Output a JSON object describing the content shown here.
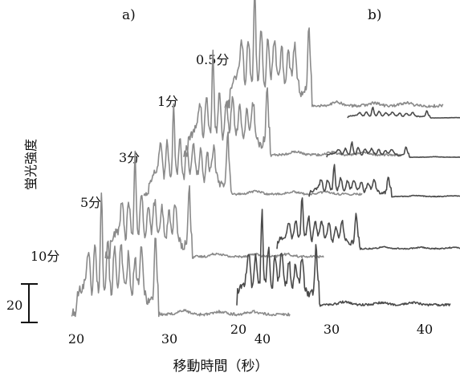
{
  "panels": {
    "a": {
      "label": "a)"
    },
    "b": {
      "label": "b)"
    }
  },
  "scale_bar": {
    "label": "20"
  },
  "chart_data": {
    "type": "line",
    "title": "",
    "xlabel": "移動時間（秒）",
    "ylabel": "蛍光強度",
    "x_ticks": [
      20,
      30,
      40
    ],
    "scale_bar_value": 20,
    "colors": {
      "panel_a": "#8a8a8a",
      "panel_b": "#4a4a4a"
    },
    "panel_a_series": [
      {
        "name": "10分",
        "x_range": [
          19.5,
          43
        ]
      },
      {
        "name": "5分",
        "x_range": [
          19.5,
          43
        ]
      },
      {
        "name": "3分",
        "x_range": [
          19.5,
          43
        ]
      },
      {
        "name": "1分",
        "x_range": [
          19.5,
          43
        ]
      },
      {
        "name": "0.5分",
        "x_range": [
          19.5,
          43
        ]
      }
    ],
    "panel_b_series": [
      {
        "x_range": [
          20,
          43
        ]
      },
      {
        "x_range": [
          20,
          43
        ]
      },
      {
        "x_range": [
          20,
          43
        ]
      },
      {
        "x_range": [
          20,
          43
        ]
      },
      {
        "x_range": [
          20,
          43
        ]
      }
    ]
  }
}
